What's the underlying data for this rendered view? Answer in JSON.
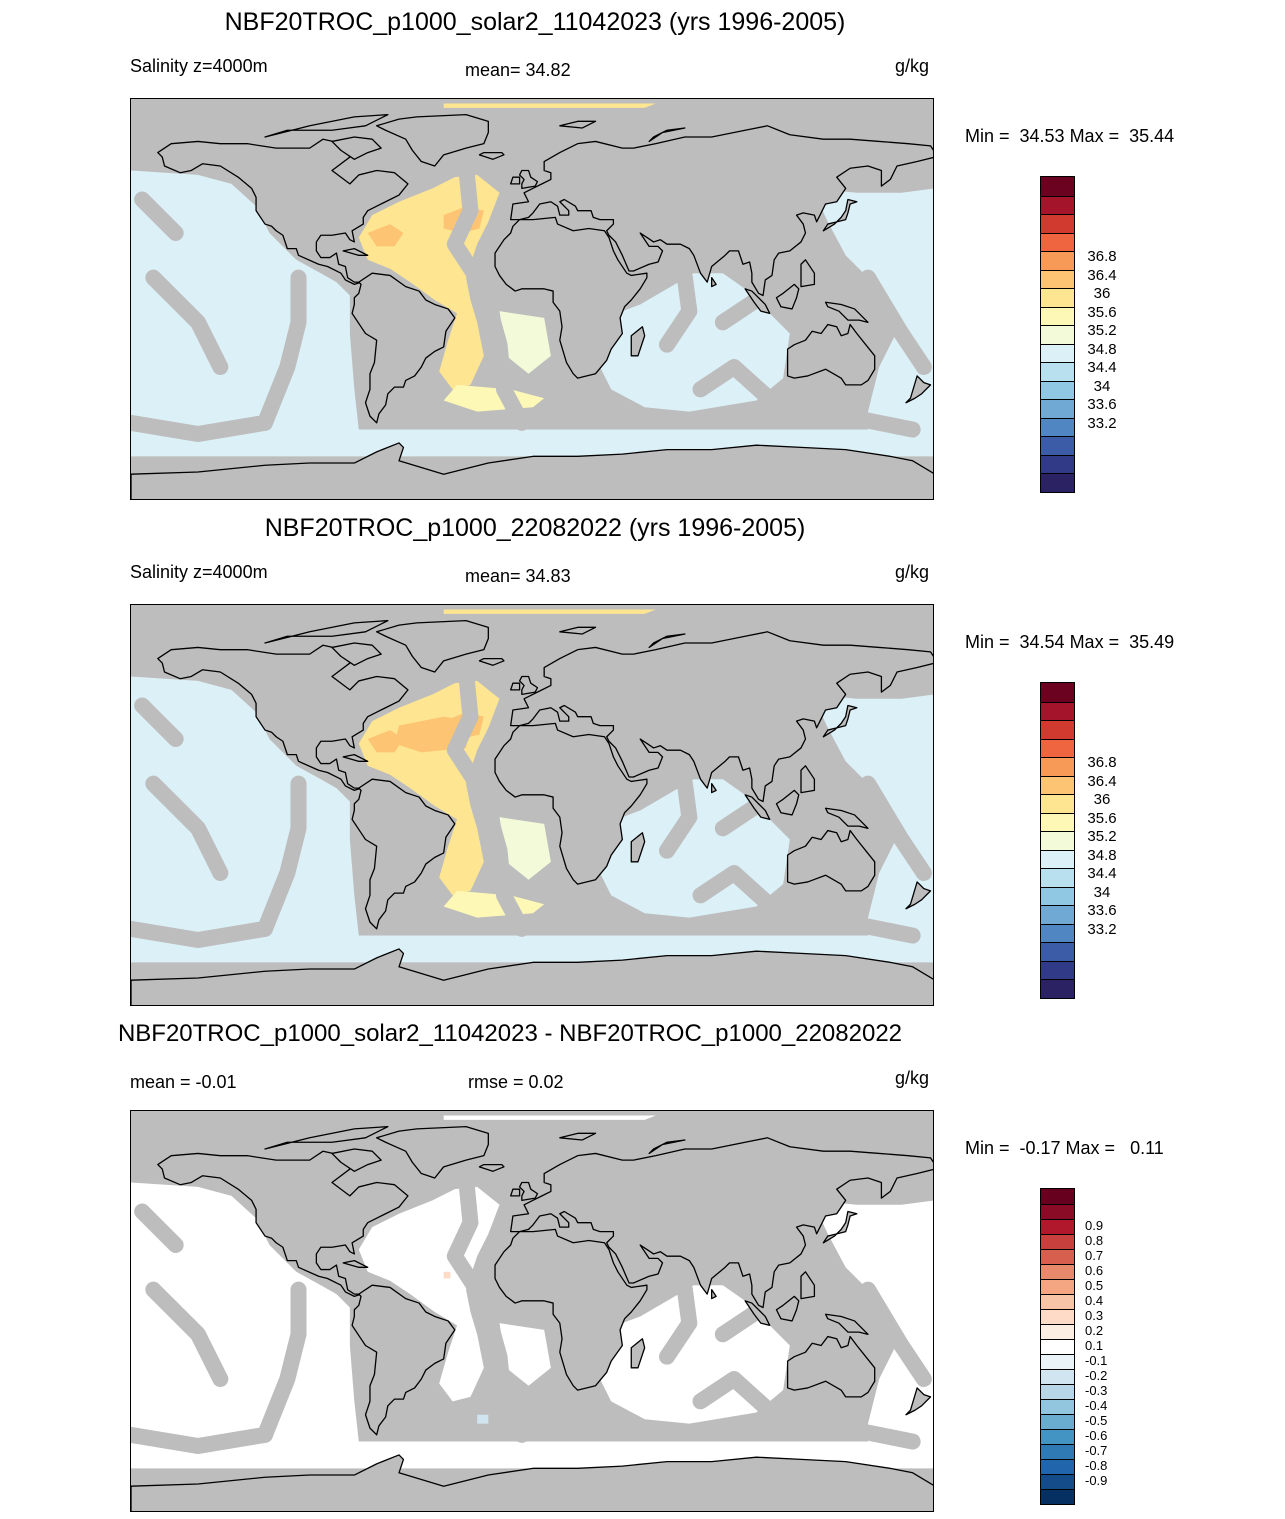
{
  "panels": [
    {
      "title": "NBF20TROC_p1000_solar2_11042023 (yrs 1996-2005)",
      "left_label": "Salinity z=4000m",
      "center_label": "mean=  34.82",
      "units": "g/kg",
      "minmax": "Min =  34.53 Max =  35.44",
      "palette": "salinity",
      "mode": "exp1"
    },
    {
      "title": "NBF20TROC_p1000_22082022 (yrs 1996-2005)",
      "left_label": "Salinity z=4000m",
      "center_label": "mean=  34.83",
      "units": "g/kg",
      "minmax": "Min =  34.54 Max =  35.49",
      "palette": "salinity",
      "mode": "exp2"
    },
    {
      "title": "NBF20TROC_p1000_solar2_11042023 - NBF20TROC_p1000_22082022",
      "left_label": "mean =  -0.01",
      "center_label": "rmse =   0.02",
      "units": "g/kg",
      "minmax": "Min =  -0.17 Max =   0.11",
      "palette": "diff",
      "mode": "diff"
    }
  ],
  "colorbars": {
    "salinity": {
      "labels": [
        "36.8",
        "36.4",
        "36",
        "35.6",
        "35.2",
        "34.8",
        "34.4",
        "34",
        "33.6",
        "33.2"
      ],
      "colors": [
        "#6a0220",
        "#a4142a",
        "#d13a2e",
        "#ee6540",
        "#f79a58",
        "#fcc473",
        "#fde592",
        "#fdf8b6",
        "#f2fad9",
        "#dcf0f7",
        "#b8e0ef",
        "#90c8e4",
        "#6fa9d4",
        "#5086c1",
        "#3c5ca8",
        "#313a87",
        "#2b2264"
      ]
    },
    "diff": {
      "labels": [
        "0.9",
        "0.8",
        "0.7",
        "0.6",
        "0.5",
        "0.4",
        "0.3",
        "0.2",
        "0.1",
        "-0.1",
        "-0.2",
        "-0.3",
        "-0.4",
        "-0.5",
        "-0.6",
        "-0.7",
        "-0.8",
        "-0.9"
      ],
      "colors": [
        "#67001f",
        "#8a0b25",
        "#b2182b",
        "#c7403d",
        "#d6604d",
        "#e8896c",
        "#f4a582",
        "#f8c4a8",
        "#fddbc7",
        "#fdeee4",
        "#ffffff",
        "#e9f3f8",
        "#d1e5f0",
        "#b7d7e9",
        "#92c5de",
        "#6aacd0",
        "#4393c3",
        "#2f79b5",
        "#2166ac",
        "#134c88",
        "#053061"
      ]
    }
  },
  "map_colors": {
    "land": "#bdbdbd",
    "deep_sal": "#dcf0f7",
    "atl_sal": "#fde592",
    "atl_core": "#fcc473",
    "atl_edge": "#fdf8b6",
    "south_sal": "#f2fad9",
    "deep_diff": "#ffffff",
    "diff_pos": "#fddbc7",
    "diff_neg": "#d1e5f0"
  }
}
